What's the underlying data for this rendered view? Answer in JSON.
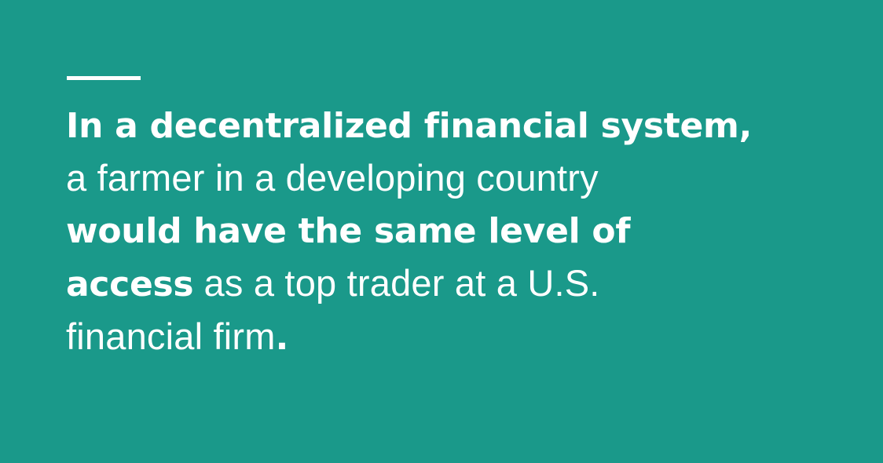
{
  "background_color": "#1a998a",
  "text_color": "#ffffff",
  "quote": {
    "line1_bold": "In a decentralized financial system,",
    "line2_light": "a farmer in a developing country",
    "line3_bold": "would have the same level of",
    "line4_bold": "access",
    "line4_light": " as a top trader at a U.S.",
    "line5_light": "financial firm",
    "line5_bold": "."
  }
}
